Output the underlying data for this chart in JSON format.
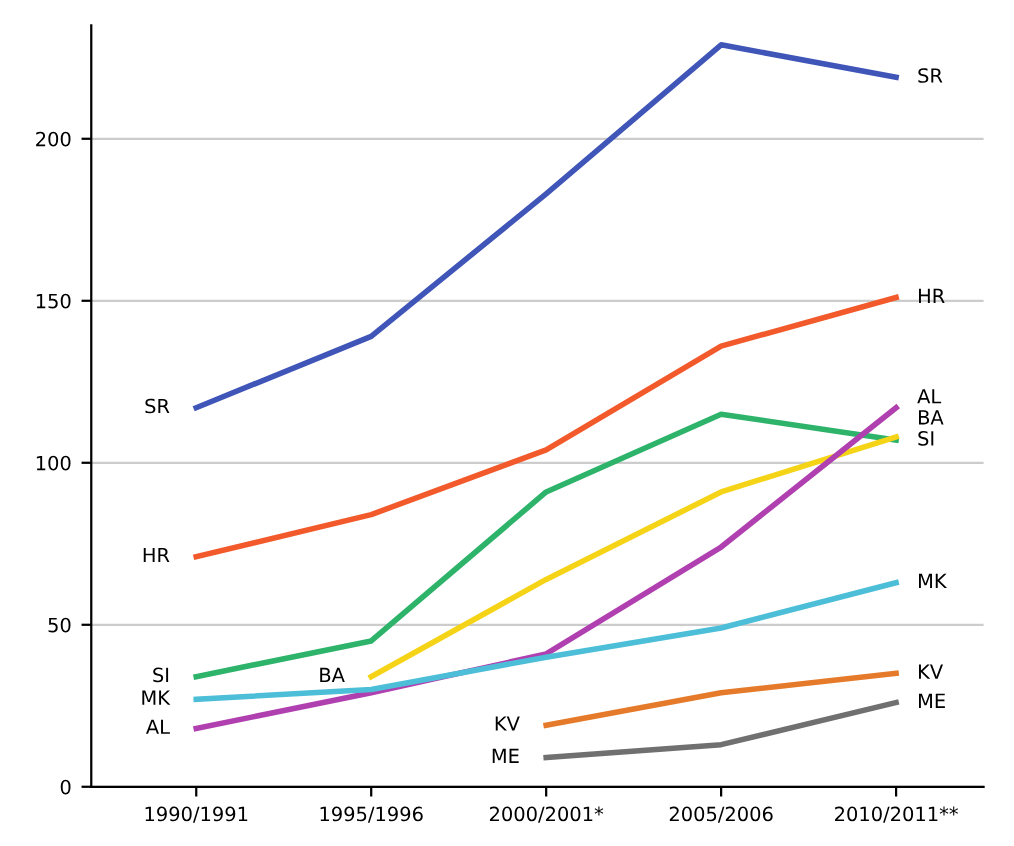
{
  "chart_data": {
    "type": "line",
    "categories": [
      "1990/1991",
      "1995/1996",
      "2000/2001*",
      "2005/2006",
      "2010/2011**"
    ],
    "ylim": [
      0,
      235
    ],
    "yticks": [
      0,
      50,
      100,
      150,
      200
    ],
    "grid": "y",
    "marker": "none",
    "line_style": "solid",
    "legend": false,
    "series": [
      {
        "name": "SR",
        "color": "#4055b8",
        "values": [
          117,
          139,
          183,
          229,
          219
        ]
      },
      {
        "name": "HR",
        "color": "#f25a2c",
        "values": [
          71,
          84,
          104,
          136,
          151
        ]
      },
      {
        "name": "SI",
        "color": "#2db36a",
        "values": [
          34,
          45,
          91,
          115,
          107
        ]
      },
      {
        "name": "BA",
        "color": "#f5d316",
        "values": [
          null,
          34,
          64,
          91,
          108
        ]
      },
      {
        "name": "AL",
        "color": "#b040b0",
        "values": [
          18,
          29,
          41,
          74,
          117
        ]
      },
      {
        "name": "MK",
        "color": "#4dbed8",
        "values": [
          27,
          30,
          40,
          49,
          63
        ]
      },
      {
        "name": "KV",
        "color": "#e57a2a",
        "values": [
          null,
          null,
          19,
          29,
          35
        ]
      },
      {
        "name": "ME",
        "color": "#707070",
        "values": [
          null,
          null,
          9,
          13,
          26
        ]
      }
    ]
  }
}
